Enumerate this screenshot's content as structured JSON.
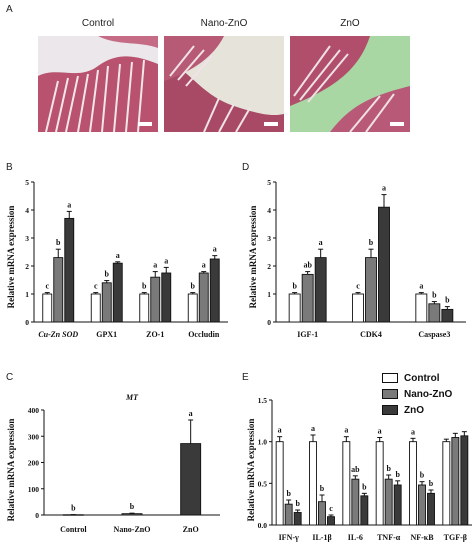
{
  "panel_a": {
    "letter": "A",
    "labels": [
      "Control",
      "Nano-ZnO",
      "ZnO"
    ]
  },
  "legend": {
    "items": [
      {
        "label": "Control",
        "color": "#ffffff"
      },
      {
        "label": "Nano-ZnO",
        "color": "#7a7a7a"
      },
      {
        "label": "ZnO",
        "color": "#3a3a3a"
      }
    ]
  },
  "colors": {
    "control": "#ffffff",
    "nano": "#7a7a7a",
    "zno": "#3a3a3a",
    "axis": "#111111"
  },
  "chart_data": [
    {
      "id": "B",
      "type": "bar",
      "title": "",
      "ylabel": "Relative mRNA expression",
      "ylim": [
        0,
        5
      ],
      "yticks": [
        0,
        1,
        2,
        3,
        4,
        5
      ],
      "categories": [
        "Cu-Zn SOD",
        "GPX1",
        "ZO-1",
        "Occludin"
      ],
      "series": [
        {
          "name": "Control",
          "values": [
            1.0,
            1.0,
            1.0,
            1.0
          ],
          "errors": [
            0.05,
            0.05,
            0.05,
            0.05
          ],
          "labels": [
            "c",
            "c",
            "b",
            "b"
          ]
        },
        {
          "name": "Nano-ZnO",
          "values": [
            2.3,
            1.4,
            1.6,
            1.75
          ],
          "errors": [
            0.3,
            0.08,
            0.2,
            0.05
          ],
          "labels": [
            "b",
            "b",
            "a",
            "a"
          ]
        },
        {
          "name": "ZnO",
          "values": [
            3.7,
            2.1,
            1.75,
            2.25
          ],
          "errors": [
            0.25,
            0.05,
            0.2,
            0.12
          ],
          "labels": [
            "a",
            "a",
            "a",
            "a"
          ]
        }
      ]
    },
    {
      "id": "D",
      "type": "bar",
      "title": "",
      "ylabel": "Relative mRNA expression",
      "ylim": [
        0,
        5
      ],
      "yticks": [
        0,
        1,
        2,
        3,
        4,
        5
      ],
      "categories": [
        "IGF-1",
        "CDK4",
        "Caspase3"
      ],
      "series": [
        {
          "name": "Control",
          "values": [
            1.0,
            1.0,
            1.0
          ],
          "errors": [
            0.05,
            0.05,
            0.05
          ],
          "labels": [
            "b",
            "c",
            "a"
          ]
        },
        {
          "name": "Nano-ZnO",
          "values": [
            1.7,
            2.3,
            0.65
          ],
          "errors": [
            0.1,
            0.3,
            0.08
          ],
          "labels": [
            "ab",
            "b",
            "b"
          ]
        },
        {
          "name": "ZnO",
          "values": [
            2.3,
            4.1,
            0.45
          ],
          "errors": [
            0.3,
            0.45,
            0.1
          ],
          "labels": [
            "a",
            "a",
            "b"
          ]
        }
      ]
    },
    {
      "id": "C",
      "type": "bar",
      "title": "MT",
      "ylabel": "Relative mRNA expression",
      "ylim": [
        0,
        400
      ],
      "yticks": [
        0,
        100,
        200,
        300,
        400
      ],
      "categories": [
        "Control",
        "Nano-ZnO",
        "ZnO"
      ],
      "series": [
        {
          "name": "Relative mRNA expression",
          "values": [
            1,
            5,
            272
          ],
          "errors": [
            0.5,
            2,
            90
          ],
          "labels": [
            "b",
            "b",
            "a"
          ]
        }
      ]
    },
    {
      "id": "E",
      "type": "bar",
      "title": "",
      "ylabel": "Relative mRNA expression",
      "ylim": [
        0,
        1.5
      ],
      "yticks": [
        0.0,
        0.5,
        1.0,
        1.5
      ],
      "categories": [
        "IFN-γ",
        "IL-1β",
        "IL-6",
        "TNF-α",
        "NF-κB",
        "TGF-β"
      ],
      "series": [
        {
          "name": "Control",
          "values": [
            1.0,
            1.0,
            1.0,
            1.0,
            1.0,
            1.0
          ],
          "errors": [
            0.06,
            0.08,
            0.06,
            0.05,
            0.04,
            0.03
          ],
          "labels": [
            "a",
            "a",
            "a",
            "a",
            "a",
            ""
          ]
        },
        {
          "name": "Nano-ZnO",
          "values": [
            0.25,
            0.28,
            0.55,
            0.55,
            0.48,
            1.05
          ],
          "errors": [
            0.05,
            0.08,
            0.04,
            0.05,
            0.04,
            0.05
          ],
          "labels": [
            "b",
            "b",
            "ab",
            "b",
            "b",
            ""
          ]
        },
        {
          "name": "ZnO",
          "values": [
            0.15,
            0.1,
            0.35,
            0.48,
            0.38,
            1.07
          ],
          "errors": [
            0.03,
            0.02,
            0.03,
            0.05,
            0.04,
            0.05
          ],
          "labels": [
            "b",
            "c",
            "b",
            "b",
            "b",
            ""
          ]
        }
      ]
    }
  ]
}
